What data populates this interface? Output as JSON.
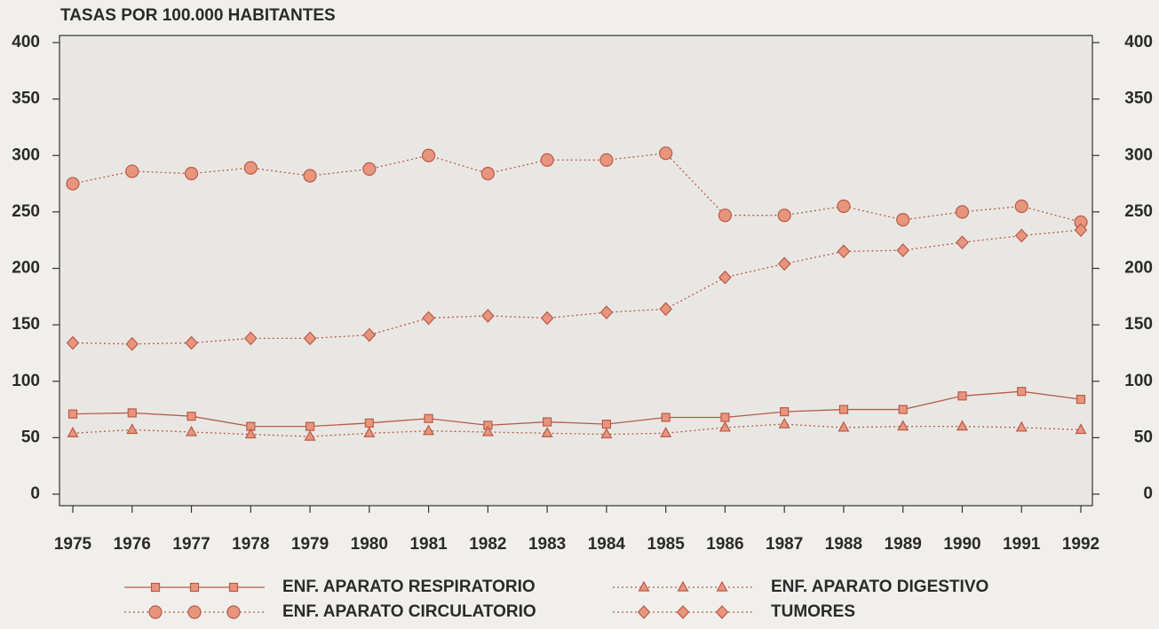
{
  "chart_data": {
    "type": "line",
    "title": "TASAS POR 100.000 HABITANTES",
    "categories": [
      "1975",
      "1976",
      "1977",
      "1978",
      "1979",
      "1980",
      "1981",
      "1982",
      "1983",
      "1984",
      "1985",
      "1986",
      "1987",
      "1988",
      "1989",
      "1990",
      "1991",
      "1992"
    ],
    "ylim": [
      0,
      400
    ],
    "yticks": [
      0,
      50,
      100,
      150,
      200,
      250,
      300,
      350,
      400
    ],
    "y2lim": [
      0,
      400
    ],
    "y2ticks": [
      0,
      50,
      100,
      150,
      200,
      250,
      300,
      350,
      400
    ],
    "series": [
      {
        "name": "ENF. APARATO RESPIRATORIO",
        "color": "#b85a48",
        "marker": "square",
        "line_style": "solid",
        "values": [
          71,
          72,
          69,
          60,
          60,
          63,
          67,
          61,
          64,
          62,
          68,
          68,
          73,
          75,
          75,
          87,
          91,
          84
        ]
      },
      {
        "name": "ENF. APARATO CIRCULATORIO",
        "color": "#b85a48",
        "marker": "circle",
        "line_style": "dotted",
        "values": [
          275,
          286,
          284,
          289,
          282,
          288,
          300,
          284,
          296,
          296,
          302,
          247,
          247,
          255,
          243,
          250,
          255,
          241
        ]
      },
      {
        "name": "ENF. APARATO DIGESTIVO",
        "color": "#b85a48",
        "marker": "triangle",
        "line_style": "dotted",
        "values": [
          54,
          57,
          55,
          53,
          51,
          54,
          56,
          55,
          54,
          53,
          54,
          59,
          62,
          59,
          60,
          60,
          59,
          57
        ]
      },
      {
        "name": "TUMORES",
        "color": "#b85a48",
        "marker": "diamond",
        "line_style": "dotted",
        "values": [
          134,
          133,
          134,
          138,
          138,
          141,
          156,
          158,
          156,
          161,
          164,
          192,
          204,
          215,
          216,
          223,
          229,
          234
        ]
      }
    ]
  }
}
